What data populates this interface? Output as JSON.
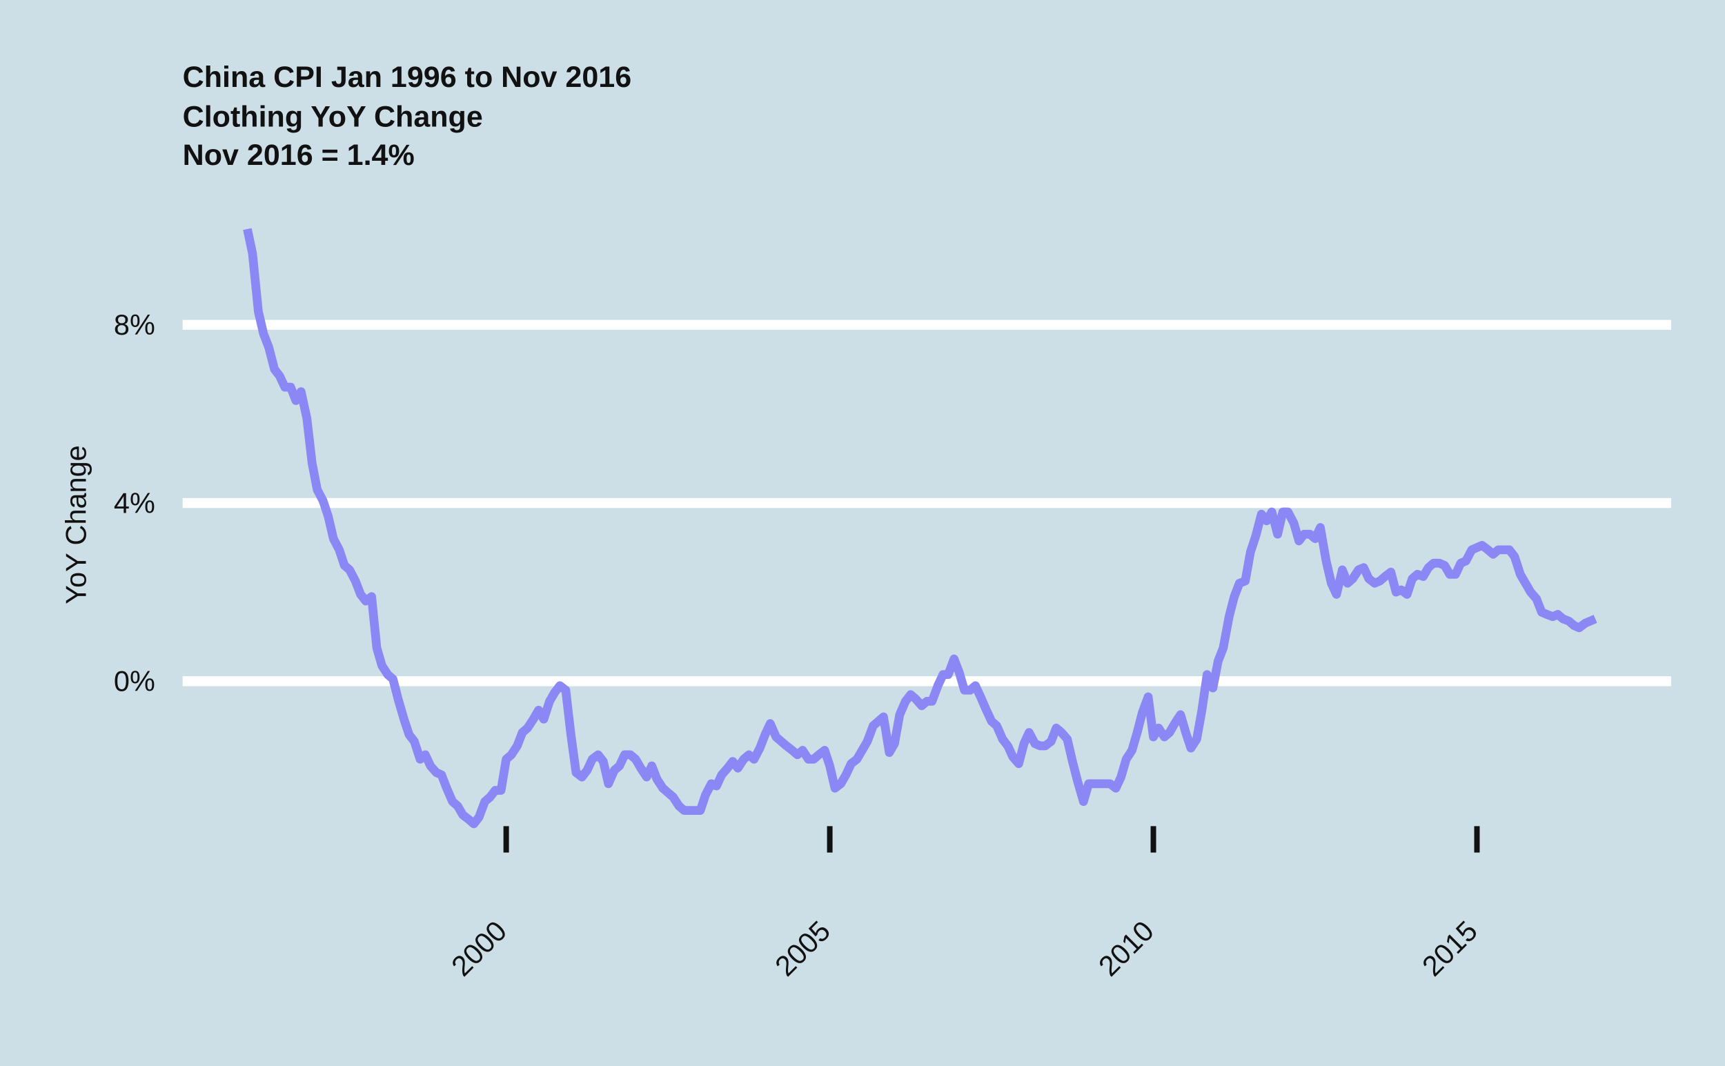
{
  "chart_data": {
    "type": "line",
    "title": "China CPI Jan 1996 to Nov 2016",
    "subtitle": [
      "Clothing YoY Change",
      "Nov 2016 = 1.4%"
    ],
    "ylabel": "YoY Change",
    "xlim": [
      1995,
      2018
    ],
    "xticks": [
      2000,
      2005,
      2010,
      2015
    ],
    "ylim": [
      -3.5,
      10.5
    ],
    "yticks": [
      {
        "value": 0,
        "label": "0%"
      },
      {
        "value": 4,
        "label": "4%"
      },
      {
        "value": 8,
        "label": "8%"
      }
    ],
    "grid": true,
    "x": [
      1996.0,
      1996.08,
      1996.17,
      1996.25,
      1996.33,
      1996.42,
      1996.5,
      1996.58,
      1996.67,
      1996.75,
      1996.83,
      1996.92,
      1997.0,
      1997.08,
      1997.17,
      1997.25,
      1997.33,
      1997.42,
      1997.5,
      1997.58,
      1997.67,
      1997.75,
      1997.83,
      1997.92,
      1998.0,
      1998.08,
      1998.17,
      1998.25,
      1998.33,
      1998.42,
      1998.5,
      1998.58,
      1998.67,
      1998.75,
      1998.83,
      1998.92,
      1999.0,
      1999.08,
      1999.17,
      1999.25,
      1999.33,
      1999.42,
      1999.5,
      1999.58,
      1999.67,
      1999.75,
      1999.83,
      1999.92,
      2000.0,
      2000.08,
      2000.17,
      2000.25,
      2000.33,
      2000.42,
      2000.5,
      2000.58,
      2000.67,
      2000.75,
      2000.83,
      2000.92,
      2001.0,
      2001.08,
      2001.17,
      2001.25,
      2001.33,
      2001.42,
      2001.5,
      2001.58,
      2001.67,
      2001.75,
      2001.83,
      2001.92,
      2002.0,
      2002.08,
      2002.17,
      2002.25,
      2002.33,
      2002.42,
      2002.5,
      2002.58,
      2002.67,
      2002.75,
      2002.83,
      2002.92,
      2003.0,
      2003.08,
      2003.17,
      2003.25,
      2003.33,
      2003.42,
      2003.5,
      2003.58,
      2003.67,
      2003.75,
      2003.83,
      2003.92,
      2004.0,
      2004.08,
      2004.17,
      2004.25,
      2004.33,
      2004.42,
      2004.5,
      2004.58,
      2004.67,
      2004.75,
      2004.83,
      2004.92,
      2005.0,
      2005.08,
      2005.17,
      2005.25,
      2005.33,
      2005.42,
      2005.5,
      2005.58,
      2005.67,
      2005.75,
      2005.83,
      2005.92,
      2006.0,
      2006.08,
      2006.17,
      2006.25,
      2006.33,
      2006.42,
      2006.5,
      2006.58,
      2006.67,
      2006.75,
      2006.83,
      2006.92,
      2007.0,
      2007.08,
      2007.17,
      2007.25,
      2007.33,
      2007.42,
      2007.5,
      2007.58,
      2007.67,
      2007.75,
      2007.83,
      2007.92,
      2008.0,
      2008.08,
      2008.17,
      2008.25,
      2008.33,
      2008.42,
      2008.5,
      2008.58,
      2008.67,
      2008.75,
      2008.83,
      2008.92,
      2009.0,
      2009.08,
      2009.17,
      2009.25,
      2009.33,
      2009.42,
      2009.5,
      2009.58,
      2009.67,
      2009.75,
      2009.83,
      2009.92,
      2010.0,
      2010.08,
      2010.17,
      2010.25,
      2010.33,
      2010.42,
      2010.5,
      2010.58,
      2010.67,
      2010.75,
      2010.83,
      2010.92,
      2011.0,
      2011.08,
      2011.17,
      2011.25,
      2011.33,
      2011.42,
      2011.5,
      2011.58,
      2011.67,
      2011.75,
      2011.83,
      2011.92,
      2012.0,
      2012.08,
      2012.17,
      2012.25,
      2012.33,
      2012.42,
      2012.5,
      2012.58,
      2012.67,
      2012.75,
      2012.83,
      2012.92,
      2013.0,
      2013.08,
      2013.17,
      2013.25,
      2013.33,
      2013.42,
      2013.5,
      2013.58,
      2013.67,
      2013.75,
      2013.83,
      2013.92,
      2014.0,
      2014.08,
      2014.17,
      2014.25,
      2014.33,
      2014.42,
      2014.5,
      2014.58,
      2014.67,
      2014.75,
      2014.83,
      2014.92,
      2015.0,
      2015.08,
      2015.17,
      2015.25,
      2015.33,
      2015.42,
      2015.5,
      2015.58,
      2015.67,
      2015.75,
      2015.83,
      2015.92,
      2016.0,
      2016.08,
      2016.17,
      2016.25,
      2016.33,
      2016.42,
      2016.5,
      2016.58,
      2016.67,
      2016.75,
      2016.83
    ],
    "series": [
      {
        "name": "Clothing YoY Change",
        "color": "#8b87f5",
        "values": [
          10.15,
          9.6,
          8.3,
          7.8,
          7.5,
          7.0,
          6.85,
          6.6,
          6.6,
          6.3,
          6.5,
          5.9,
          4.9,
          4.3,
          4.05,
          3.7,
          3.2,
          2.95,
          2.6,
          2.5,
          2.25,
          1.95,
          1.8,
          1.9,
          0.75,
          0.35,
          0.15,
          0.05,
          -0.4,
          -0.85,
          -1.2,
          -1.35,
          -1.75,
          -1.65,
          -1.9,
          -2.05,
          -2.1,
          -2.4,
          -2.7,
          -2.8,
          -3.0,
          -3.1,
          -3.2,
          -3.05,
          -2.7,
          -2.6,
          -2.45,
          -2.45,
          -1.75,
          -1.65,
          -1.45,
          -1.15,
          -1.05,
          -0.85,
          -0.65,
          -0.85,
          -0.45,
          -0.25,
          -0.1,
          -0.2,
          -1.2,
          -2.05,
          -2.15,
          -2.0,
          -1.75,
          -1.65,
          -1.8,
          -2.3,
          -2.0,
          -1.9,
          -1.65,
          -1.65,
          -1.75,
          -1.95,
          -2.15,
          -1.9,
          -2.2,
          -2.4,
          -2.5,
          -2.6,
          -2.8,
          -2.9,
          -2.9,
          -2.9,
          -2.9,
          -2.55,
          -2.3,
          -2.35,
          -2.1,
          -1.95,
          -1.8,
          -1.95,
          -1.75,
          -1.65,
          -1.75,
          -1.5,
          -1.2,
          -0.95,
          -1.25,
          -1.35,
          -1.45,
          -1.55,
          -1.65,
          -1.55,
          -1.75,
          -1.75,
          -1.65,
          -1.55,
          -1.9,
          -2.4,
          -2.3,
          -2.1,
          -1.85,
          -1.75,
          -1.55,
          -1.35,
          -1.0,
          -0.9,
          -0.8,
          -1.6,
          -1.4,
          -0.75,
          -0.45,
          -0.3,
          -0.4,
          -0.55,
          -0.45,
          -0.45,
          -0.1,
          0.15,
          0.15,
          0.5,
          0.2,
          -0.2,
          -0.2,
          -0.1,
          -0.35,
          -0.65,
          -0.9,
          -1.0,
          -1.3,
          -1.45,
          -1.7,
          -1.85,
          -1.4,
          -1.15,
          -1.4,
          -1.45,
          -1.45,
          -1.35,
          -1.05,
          -1.15,
          -1.3,
          -1.8,
          -2.25,
          -2.7,
          -2.3,
          -2.3,
          -2.3,
          -2.3,
          -2.3,
          -2.4,
          -2.15,
          -1.75,
          -1.55,
          -1.15,
          -0.7,
          -0.35,
          -1.25,
          -1.05,
          -1.25,
          -1.15,
          -0.95,
          -0.75,
          -1.15,
          -1.5,
          -1.3,
          -0.65,
          0.15,
          -0.15,
          0.45,
          0.75,
          1.45,
          1.9,
          2.2,
          2.25,
          2.9,
          3.25,
          3.75,
          3.6,
          3.8,
          3.3,
          3.8,
          3.8,
          3.55,
          3.15,
          3.3,
          3.3,
          3.2,
          3.45,
          2.7,
          2.2,
          1.95,
          2.5,
          2.2,
          2.3,
          2.5,
          2.55,
          2.3,
          2.2,
          2.25,
          2.35,
          2.45,
          2.0,
          2.05,
          1.95,
          2.3,
          2.4,
          2.35,
          2.55,
          2.65,
          2.65,
          2.6,
          2.4,
          2.4,
          2.65,
          2.7,
          2.95,
          3.0,
          3.05,
          2.95,
          2.85,
          2.95,
          2.95,
          2.95,
          2.8,
          2.4,
          2.2,
          2.0,
          1.85,
          1.55,
          1.5,
          1.45,
          1.5,
          1.4,
          1.35,
          1.25,
          1.2,
          1.3,
          1.35,
          1.4
        ]
      }
    ]
  }
}
